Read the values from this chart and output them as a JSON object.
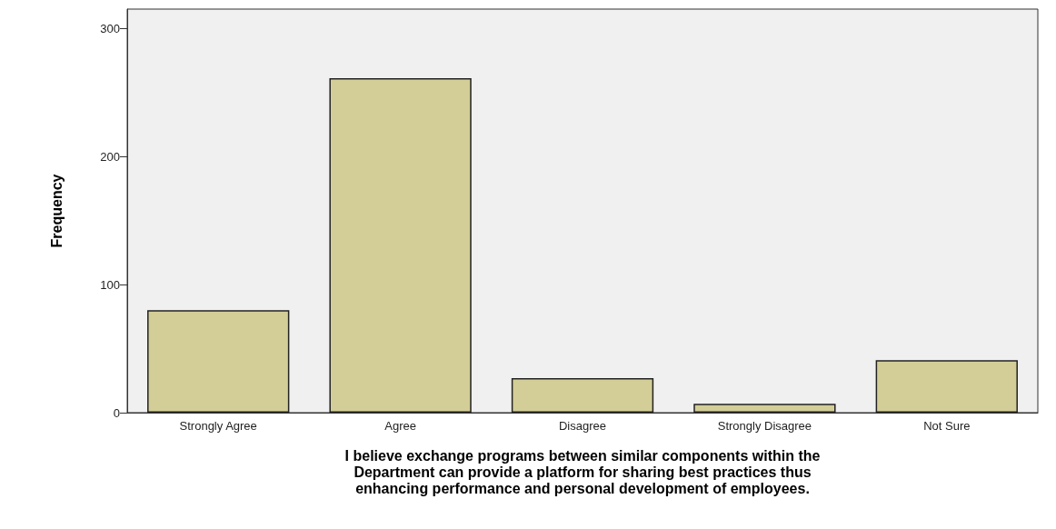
{
  "chart_data": {
    "type": "bar",
    "xlabel": "I believe exchange programs between similar components within the\nDepartment can provide a platform for sharing best practices thus\nenhancing performance and personal development of employees.",
    "ylabel": "Frequency",
    "categories": [
      "Strongly Agree",
      "Agree",
      "Disagree",
      "Strongly Disagree",
      "Not Sure"
    ],
    "values": [
      80,
      261,
      27,
      7,
      41
    ],
    "color": "#d3ce97",
    "ylim": [
      0,
      315
    ],
    "yticks": [
      0,
      100,
      200,
      300
    ],
    "grid": false
  }
}
